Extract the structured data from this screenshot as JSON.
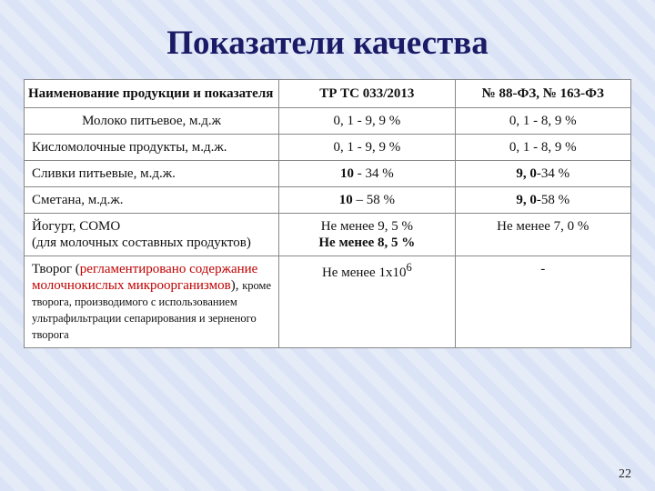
{
  "title": "Показатели качества",
  "columns": [
    "Наименование продукции и показателя",
    "ТР ТС 033/2013",
    "№ 88-ФЗ, № 163-ФЗ"
  ],
  "rows": {
    "r0": {
      "name": "Молоко питьевое,  м.д.ж",
      "v1": "0, 1 - 9, 9 %",
      "v2": "0, 1 - 8, 9 %"
    },
    "r1": {
      "name": "Кисломолочные продукты, м.д.ж.",
      "v1": "0, 1 - 9, 9 %",
      "v2": "0, 1 - 8, 9 %"
    },
    "r2": {
      "name": "Сливки питьевые, м.д.ж.",
      "v1": "10 - 34 %",
      "v1_b": "10",
      "v1_r": " - 34 %",
      "v2": "9, 0-34 %",
      "v2_b": "9, 0",
      "v2_r": "-34 %"
    },
    "r3": {
      "name": "Сметана, м.д.ж.",
      "v1": "10 – 58 %",
      "v1_b": "10",
      "v1_r": " – 58 %",
      "v2": "9, 0-58 %",
      "v2_b": "9, 0",
      "v2_r": "-58 %"
    },
    "r4": {
      "name_l1": "Йогурт, СОМО",
      "name_l2": "(для молочных составных продуктов)",
      "v1_l1": "Не менее 9, 5 %",
      "v1_l2": "Не менее 8, 5 %",
      "v2": "Не менее 7, 0 %"
    },
    "r5": {
      "name_a": "Творог (",
      "name_red": "регламентировано содержание молочнокислых микроорганизмов",
      "name_b": "), ",
      "name_note": "кроме творога, производимого с использованием ультрафильтрации сепарирования и зерненого творога",
      "v1_pre": "Не менее 1х10",
      "v1_sup": "6",
      "v2": "-"
    }
  },
  "slide_number": "22"
}
